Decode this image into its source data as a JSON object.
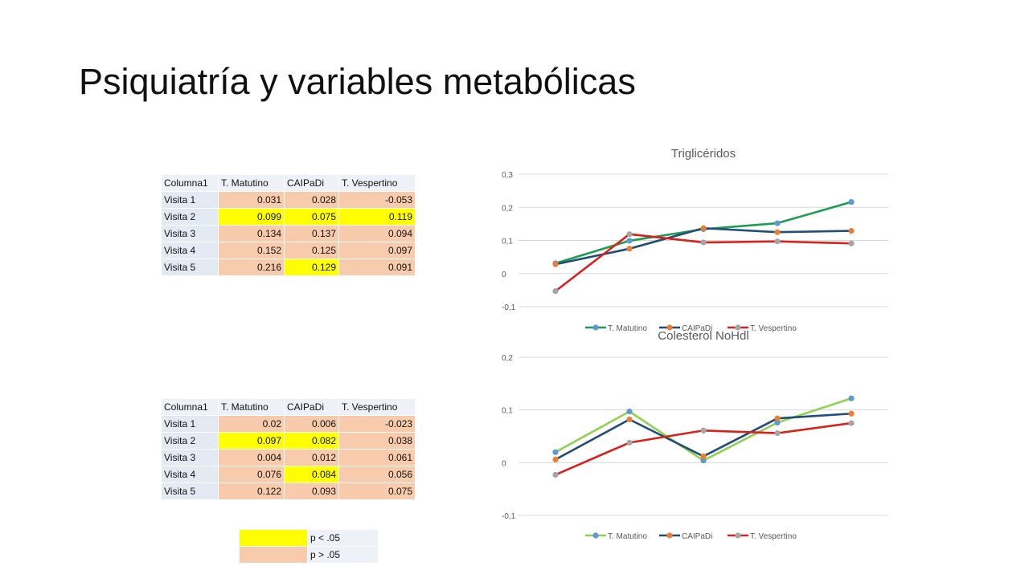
{
  "title": "Psiquiatría y variables metabólicas",
  "tables": [
    {
      "headers": [
        "Columna1",
        "T. Matutino",
        "CAIPaDi",
        "T. Vespertino"
      ],
      "rows": [
        {
          "label": "Visita 1",
          "cells": [
            {
              "value": "0.031",
              "sig": false
            },
            {
              "value": "0.028",
              "sig": false
            },
            {
              "value": "-0.053",
              "sig": false
            }
          ]
        },
        {
          "label": "Visita 2",
          "cells": [
            {
              "value": "0.099",
              "sig": true
            },
            {
              "value": "0.075",
              "sig": true
            },
            {
              "value": "0.119",
              "sig": true
            }
          ]
        },
        {
          "label": "Visita 3",
          "cells": [
            {
              "value": "0.134",
              "sig": false
            },
            {
              "value": "0.137",
              "sig": false
            },
            {
              "value": "0.094",
              "sig": false
            }
          ]
        },
        {
          "label": "Visita 4",
          "cells": [
            {
              "value": "0.152",
              "sig": false
            },
            {
              "value": "0.125",
              "sig": false
            },
            {
              "value": "0.097",
              "sig": false
            }
          ]
        },
        {
          "label": "Visita 5",
          "cells": [
            {
              "value": "0.216",
              "sig": false
            },
            {
              "value": "0.129",
              "sig": true
            },
            {
              "value": "0.091",
              "sig": false
            }
          ]
        }
      ]
    },
    {
      "headers": [
        "Columna1",
        "T. Matutino",
        "CAIPaDi",
        "T. Vespertino"
      ],
      "rows": [
        {
          "label": "Visita 1",
          "cells": [
            {
              "value": "0.02",
              "sig": false
            },
            {
              "value": "0.006",
              "sig": false
            },
            {
              "value": "-0.023",
              "sig": false
            }
          ]
        },
        {
          "label": "Visita 2",
          "cells": [
            {
              "value": "0.097",
              "sig": true
            },
            {
              "value": "0.082",
              "sig": true
            },
            {
              "value": "0.038",
              "sig": false
            }
          ]
        },
        {
          "label": "Visita 3",
          "cells": [
            {
              "value": "0.004",
              "sig": false
            },
            {
              "value": "0.012",
              "sig": false
            },
            {
              "value": "0.061",
              "sig": false
            }
          ]
        },
        {
          "label": "Visita 4",
          "cells": [
            {
              "value": "0.076",
              "sig": false
            },
            {
              "value": "0.084",
              "sig": true
            },
            {
              "value": "0.056",
              "sig": false
            }
          ]
        },
        {
          "label": "Visita 5",
          "cells": [
            {
              "value": "0.122",
              "sig": false
            },
            {
              "value": "0.093",
              "sig": false
            },
            {
              "value": "0.075",
              "sig": false
            }
          ]
        }
      ]
    }
  ],
  "significance_legend": [
    {
      "label": "p < .05",
      "color": "#ffff00"
    },
    {
      "label": "p > .05",
      "color": "#f7cbac"
    }
  ],
  "chart_data": [
    {
      "type": "line",
      "title": "Triglicéridos",
      "x": [
        1,
        2,
        3,
        4,
        5
      ],
      "ylim": [
        -0.1,
        0.3
      ],
      "yticks": [
        -0.1,
        0,
        0.1,
        0.2,
        0.3
      ],
      "ytick_labels": [
        "-0,1",
        "0",
        "0,1",
        "0,2",
        "0,3"
      ],
      "grid": true,
      "legend": "bottom",
      "series": [
        {
          "name": "T. Matutino",
          "values": [
            0.031,
            0.099,
            0.134,
            0.152,
            0.216
          ],
          "line_color": "#1e9c52",
          "marker_color": "#5b9bd5"
        },
        {
          "name": "CAIPaDi",
          "values": [
            0.028,
            0.075,
            0.137,
            0.125,
            0.129
          ],
          "line_color": "#1f4e79",
          "marker_color": "#ed7d31"
        },
        {
          "name": "T. Vespertino",
          "values": [
            -0.053,
            0.119,
            0.094,
            0.097,
            0.091
          ],
          "line_color": "#d9211b",
          "marker_color": "#a5a5a5"
        }
      ]
    },
    {
      "type": "line",
      "title": "Colesterol NoHdl",
      "x": [
        1,
        2,
        3,
        4,
        5
      ],
      "ylim": [
        -0.1,
        0.2
      ],
      "yticks": [
        -0.1,
        0,
        0.1,
        0.2
      ],
      "ytick_labels": [
        "-0,1",
        "0",
        "0,1",
        "0,2"
      ],
      "grid": true,
      "legend": "bottom",
      "series": [
        {
          "name": "T. Matutino",
          "values": [
            0.02,
            0.097,
            0.004,
            0.076,
            0.122
          ],
          "line_color": "#92d050",
          "marker_color": "#5b9bd5"
        },
        {
          "name": "CAIPaDi",
          "values": [
            0.006,
            0.082,
            0.012,
            0.084,
            0.093
          ],
          "line_color": "#1f4e79",
          "marker_color": "#ed7d31"
        },
        {
          "name": "T. Vespertino",
          "values": [
            -0.023,
            0.038,
            0.061,
            0.056,
            0.075
          ],
          "line_color": "#d9211b",
          "marker_color": "#a5a5a5"
        }
      ]
    }
  ]
}
